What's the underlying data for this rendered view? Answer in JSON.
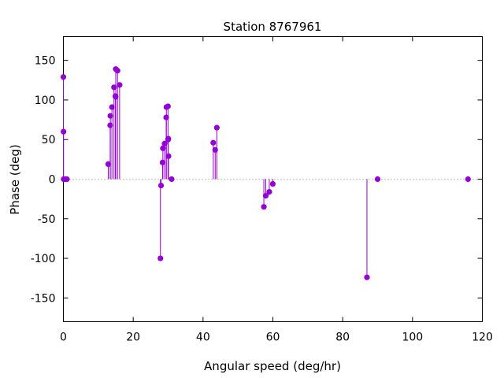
{
  "chart_data": {
    "type": "scatter",
    "style": "impulses-with-points",
    "title": "Station 8767961",
    "xlabel": "Angular speed (deg/hr)",
    "ylabel": "Phase (deg)",
    "xlim": [
      0,
      120
    ],
    "ylim": [
      -180,
      180
    ],
    "xticks": [
      0,
      20,
      40,
      60,
      80,
      100,
      120
    ],
    "yticks": [
      -150,
      -100,
      -50,
      0,
      50,
      100,
      150
    ],
    "zero_line": true,
    "grid": false,
    "series_color": "#9400d3",
    "points": [
      {
        "x": 0.0,
        "y": 129
      },
      {
        "x": 0.04,
        "y": 60
      },
      {
        "x": 0.08,
        "y": 0
      },
      {
        "x": 0.5,
        "y": 0
      },
      {
        "x": 0.8,
        "y": 0
      },
      {
        "x": 1.0,
        "y": 0
      },
      {
        "x": 12.85,
        "y": 19
      },
      {
        "x": 13.4,
        "y": 68
      },
      {
        "x": 13.45,
        "y": 80
      },
      {
        "x": 13.9,
        "y": 91
      },
      {
        "x": 14.5,
        "y": 116
      },
      {
        "x": 14.9,
        "y": 105
      },
      {
        "x": 14.96,
        "y": 104
      },
      {
        "x": 15.0,
        "y": 139
      },
      {
        "x": 15.5,
        "y": 137
      },
      {
        "x": 16.1,
        "y": 119
      },
      {
        "x": 27.8,
        "y": -100
      },
      {
        "x": 27.97,
        "y": -8
      },
      {
        "x": 28.4,
        "y": 21
      },
      {
        "x": 28.5,
        "y": 39
      },
      {
        "x": 29.0,
        "y": 45
      },
      {
        "x": 29.45,
        "y": 78
      },
      {
        "x": 29.5,
        "y": 91
      },
      {
        "x": 29.96,
        "y": 92
      },
      {
        "x": 30.0,
        "y": 50
      },
      {
        "x": 30.05,
        "y": 51
      },
      {
        "x": 30.1,
        "y": 29
      },
      {
        "x": 31.0,
        "y": 0
      },
      {
        "x": 42.93,
        "y": 46
      },
      {
        "x": 43.48,
        "y": 37
      },
      {
        "x": 43.95,
        "y": 65
      },
      {
        "x": 57.42,
        "y": -35
      },
      {
        "x": 57.97,
        "y": -21
      },
      {
        "x": 58.98,
        "y": -16
      },
      {
        "x": 59.98,
        "y": -6
      },
      {
        "x": 86.95,
        "y": -124
      },
      {
        "x": 90.0,
        "y": 0
      },
      {
        "x": 115.9,
        "y": 0
      }
    ]
  }
}
